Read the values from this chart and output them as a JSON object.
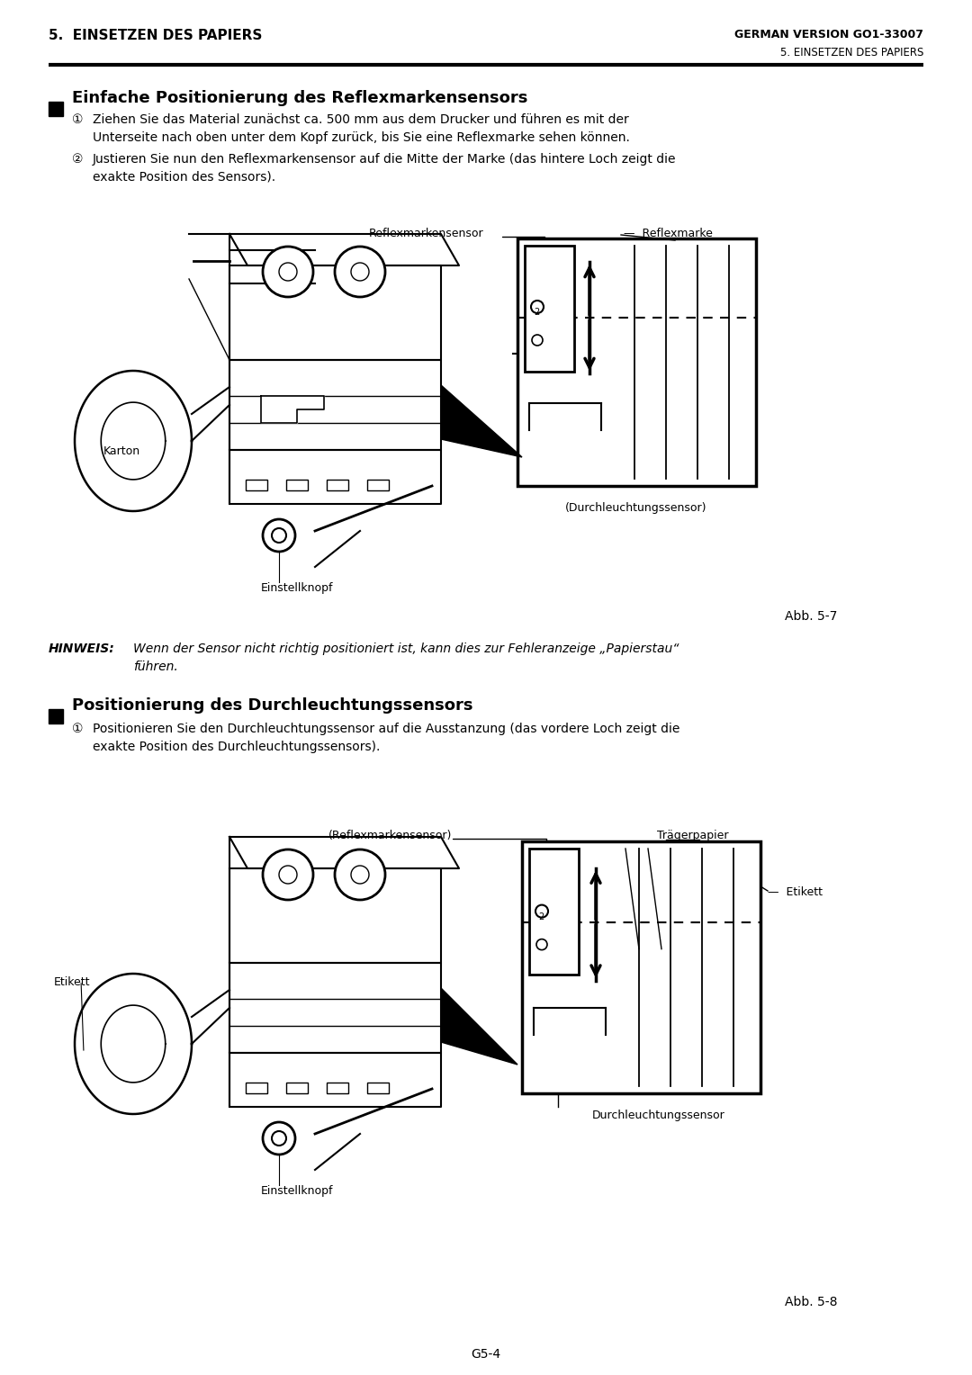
{
  "page_header_left": "5.  EINSETZEN DES PAPIERS",
  "page_header_right": "GERMAN VERSION GO1-33007",
  "page_subheader_right": "5. EINSETZEN DES PAPIERS",
  "page_footer": "G5-4",
  "section1_title": "Einfache Positionierung des Reflexmarkensensors",
  "section1_item1a": "Ziehen Sie das Material zunächst ca. 500 mm aus dem Drucker und führen es mit der",
  "section1_item1b": "Unterseite nach oben unter dem Kopf zurück, bis Sie eine Reflexmarke sehen können.",
  "section1_item2a": "Justieren Sie nun den Reflexmarkensensor auf die Mitte der Marke (das hintere Loch zeigt die",
  "section1_item2b": "exakte Position des Sensors).",
  "fig1_reflexmarkensensor": "Reflexmarkensensor",
  "fig1_reflexmarke": "Reflexmarke",
  "fig1_karton": "Karton",
  "fig1_einstellknopf": "Einstellknopf",
  "fig1_durchleuchtungssensor": "(Durchleuchtungssensor)",
  "fig1_caption": "Abb. 5-7",
  "hinweis_label": "HINWEIS:",
  "hinweis_text1": "Wenn der Sensor nicht richtig positioniert ist, kann dies zur Fehleranzeige „Papierstau“",
  "hinweis_text2": "führen.",
  "section2_title": "Positionierung des Durchleuchtungssensors",
  "section2_item1a": "Positionieren Sie den Durchleuchtungssensor auf die Ausstanzung (das vordere Loch zeigt die",
  "section2_item1b": "exakte Position des Durchleuchtungssensors).",
  "fig2_reflexmarkensensor": "(Reflexmarkensensor)",
  "fig2_traegerpapier": "Trägerpapier",
  "fig2_etikett_left": "Etikett",
  "fig2_etikett_right": "Etikett",
  "fig2_einstellknopf": "Einstellknopf",
  "fig2_durchleuchtungssensor": "Durchleuchtungssensor",
  "fig2_caption": "Abb. 5-8",
  "bg_color": "#ffffff",
  "text_color": "#000000"
}
